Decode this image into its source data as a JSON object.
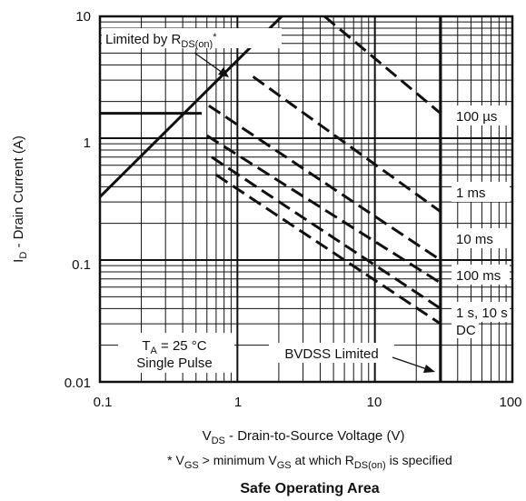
{
  "chart_data": {
    "type": "line",
    "title": "Safe Operating Area",
    "xscale": "log",
    "yscale": "log",
    "xlim": [
      0.1,
      100
    ],
    "ylim": [
      0.01,
      10
    ],
    "grid": true,
    "xticks": [
      "0.1",
      "1",
      "10",
      "100"
    ],
    "yticks": [
      "10",
      "1",
      "0.1",
      "0.01"
    ],
    "ylabel_pre": "I",
    "ylabel_sub": "D",
    "ylabel_post": " - Drain Current (A)",
    "xlabel_pre": "V",
    "xlabel_sub": "DS",
    "xlabel_post": " - Drain-to-Source Voltage (V)",
    "footnote": {
      "p1": "* V",
      "s1": "GS",
      "p2": " > minimum V",
      "s2": "GS",
      "p3": " at which R",
      "s3": "DS(on)",
      "p4": " is specified"
    },
    "rds_label": {
      "pre": "Limited by R",
      "sub": "DS(on)",
      "post": "*"
    },
    "conditions": {
      "pre": "T",
      "sub": "A",
      "post": " = 25 °C",
      "line2": "Single Pulse"
    },
    "bvdss_label": "BVDSS Limited",
    "limits": {
      "rds_on": {
        "x": [
          0.1,
          2.1
        ],
        "y": [
          0.33,
          10
        ]
      },
      "current_limit": {
        "x": [
          0.1,
          0.55
        ],
        "y": [
          1.6,
          1.6
        ]
      },
      "bvdss_v": 30
    },
    "series": [
      {
        "name": "100 µs",
        "x": [
          4.3,
          30
        ],
        "y": [
          10,
          1.6
        ]
      },
      {
        "name": "1 ms",
        "x": [
          1.3,
          30
        ],
        "y": [
          3.2,
          0.25
        ]
      },
      {
        "name": "10 ms",
        "x": [
          0.62,
          30
        ],
        "y": [
          1.85,
          0.1
        ]
      },
      {
        "name": "100 ms",
        "x": [
          0.6,
          30
        ],
        "y": [
          1.05,
          0.065
        ]
      },
      {
        "name": "1 s, 10 s",
        "x": [
          0.65,
          30
        ],
        "y": [
          0.7,
          0.04
        ]
      },
      {
        "name": "DC",
        "x": [
          0.7,
          30
        ],
        "y": [
          0.5,
          0.03
        ]
      }
    ]
  }
}
